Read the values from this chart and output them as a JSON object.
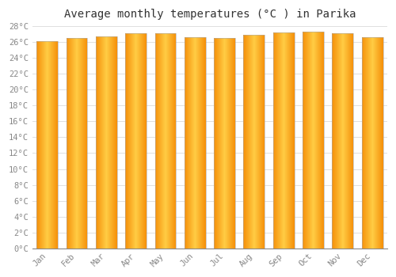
{
  "title": "Average monthly temperatures (°C ) in Parika",
  "months": [
    "Jan",
    "Feb",
    "Mar",
    "Apr",
    "May",
    "Jun",
    "Jul",
    "Aug",
    "Sep",
    "Oct",
    "Nov",
    "Dec"
  ],
  "values": [
    26.1,
    26.5,
    26.7,
    27.1,
    27.1,
    26.6,
    26.5,
    26.9,
    27.2,
    27.3,
    27.1,
    26.6
  ],
  "bar_color_center": "#FFCC44",
  "bar_color_edge": "#F5900A",
  "bar_outline_color": "#999999",
  "ylim": [
    0,
    28
  ],
  "ytick_step": 2,
  "background_color": "#FFFFFF",
  "plot_bg_color": "#FFFFFF",
  "grid_color": "#E0E0E0",
  "title_fontsize": 10,
  "tick_fontsize": 7.5,
  "title_font_color": "#333333",
  "tick_font_color": "#888888",
  "bar_width": 0.72
}
